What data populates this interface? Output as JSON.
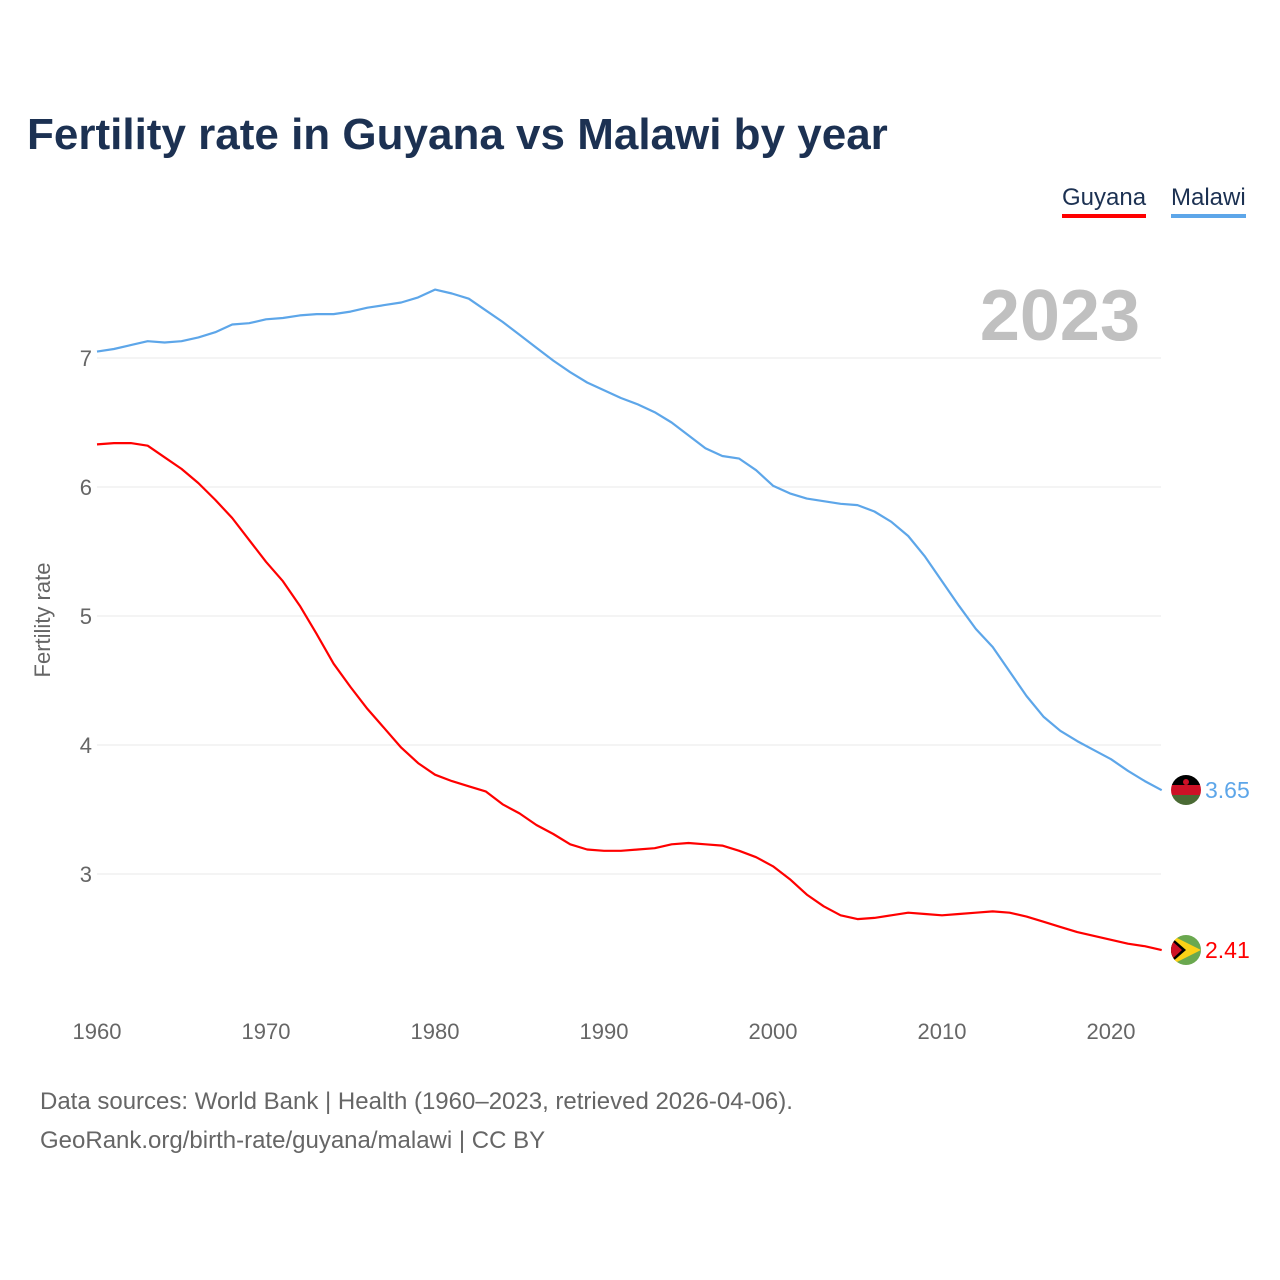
{
  "chart_data": {
    "type": "line",
    "title": "Fertility rate in Guyana vs Malawi by year",
    "xlabel": "",
    "ylabel": "Fertility rate",
    "year_label": "2023",
    "xlim": [
      1960,
      2023
    ],
    "ylim": [
      2.1,
      7.8
    ],
    "grid": true,
    "legend_position": "top-right",
    "x_ticks": [
      1960,
      1970,
      1980,
      1990,
      2000,
      2010,
      2020
    ],
    "y_ticks": [
      3,
      4,
      5,
      6,
      7
    ],
    "x_start": 1960,
    "series": [
      {
        "name": "Guyana",
        "color": "#ff0000",
        "end_label": "2.41",
        "flag": "guyana-flag",
        "values": [
          6.33,
          6.34,
          6.34,
          6.32,
          6.23,
          6.14,
          6.03,
          5.9,
          5.76,
          5.59,
          5.42,
          5.27,
          5.08,
          4.86,
          4.63,
          4.45,
          4.28,
          4.13,
          3.98,
          3.86,
          3.77,
          3.72,
          3.68,
          3.64,
          3.54,
          3.47,
          3.38,
          3.31,
          3.23,
          3.19,
          3.18,
          3.18,
          3.19,
          3.2,
          3.23,
          3.24,
          3.23,
          3.22,
          3.18,
          3.13,
          3.06,
          2.96,
          2.84,
          2.75,
          2.68,
          2.65,
          2.66,
          2.68,
          2.7,
          2.69,
          2.68,
          2.69,
          2.7,
          2.71,
          2.7,
          2.67,
          2.63,
          2.59,
          2.55,
          2.52,
          2.49,
          2.46,
          2.44,
          2.41
        ]
      },
      {
        "name": "Malawi",
        "color": "#5da6e9",
        "end_label": "3.65",
        "flag": "malawi-flag",
        "values": [
          7.05,
          7.07,
          7.1,
          7.13,
          7.12,
          7.13,
          7.16,
          7.2,
          7.26,
          7.27,
          7.3,
          7.31,
          7.33,
          7.34,
          7.34,
          7.36,
          7.39,
          7.41,
          7.43,
          7.47,
          7.53,
          7.5,
          7.46,
          7.37,
          7.28,
          7.18,
          7.08,
          6.98,
          6.89,
          6.81,
          6.75,
          6.69,
          6.64,
          6.58,
          6.5,
          6.4,
          6.3,
          6.24,
          6.22,
          6.13,
          6.01,
          5.95,
          5.91,
          5.89,
          5.87,
          5.86,
          5.81,
          5.73,
          5.62,
          5.46,
          5.27,
          5.08,
          4.9,
          4.76,
          4.57,
          4.38,
          4.22,
          4.11,
          4.03,
          3.96,
          3.89,
          3.8,
          3.72,
          3.65
        ]
      }
    ]
  },
  "footer": {
    "line1": "Data sources: World Bank | Health (1960–2023, retrieved 2026-04-06).",
    "line2": "GeoRank.org/birth-rate/guyana/malawi | CC BY"
  }
}
